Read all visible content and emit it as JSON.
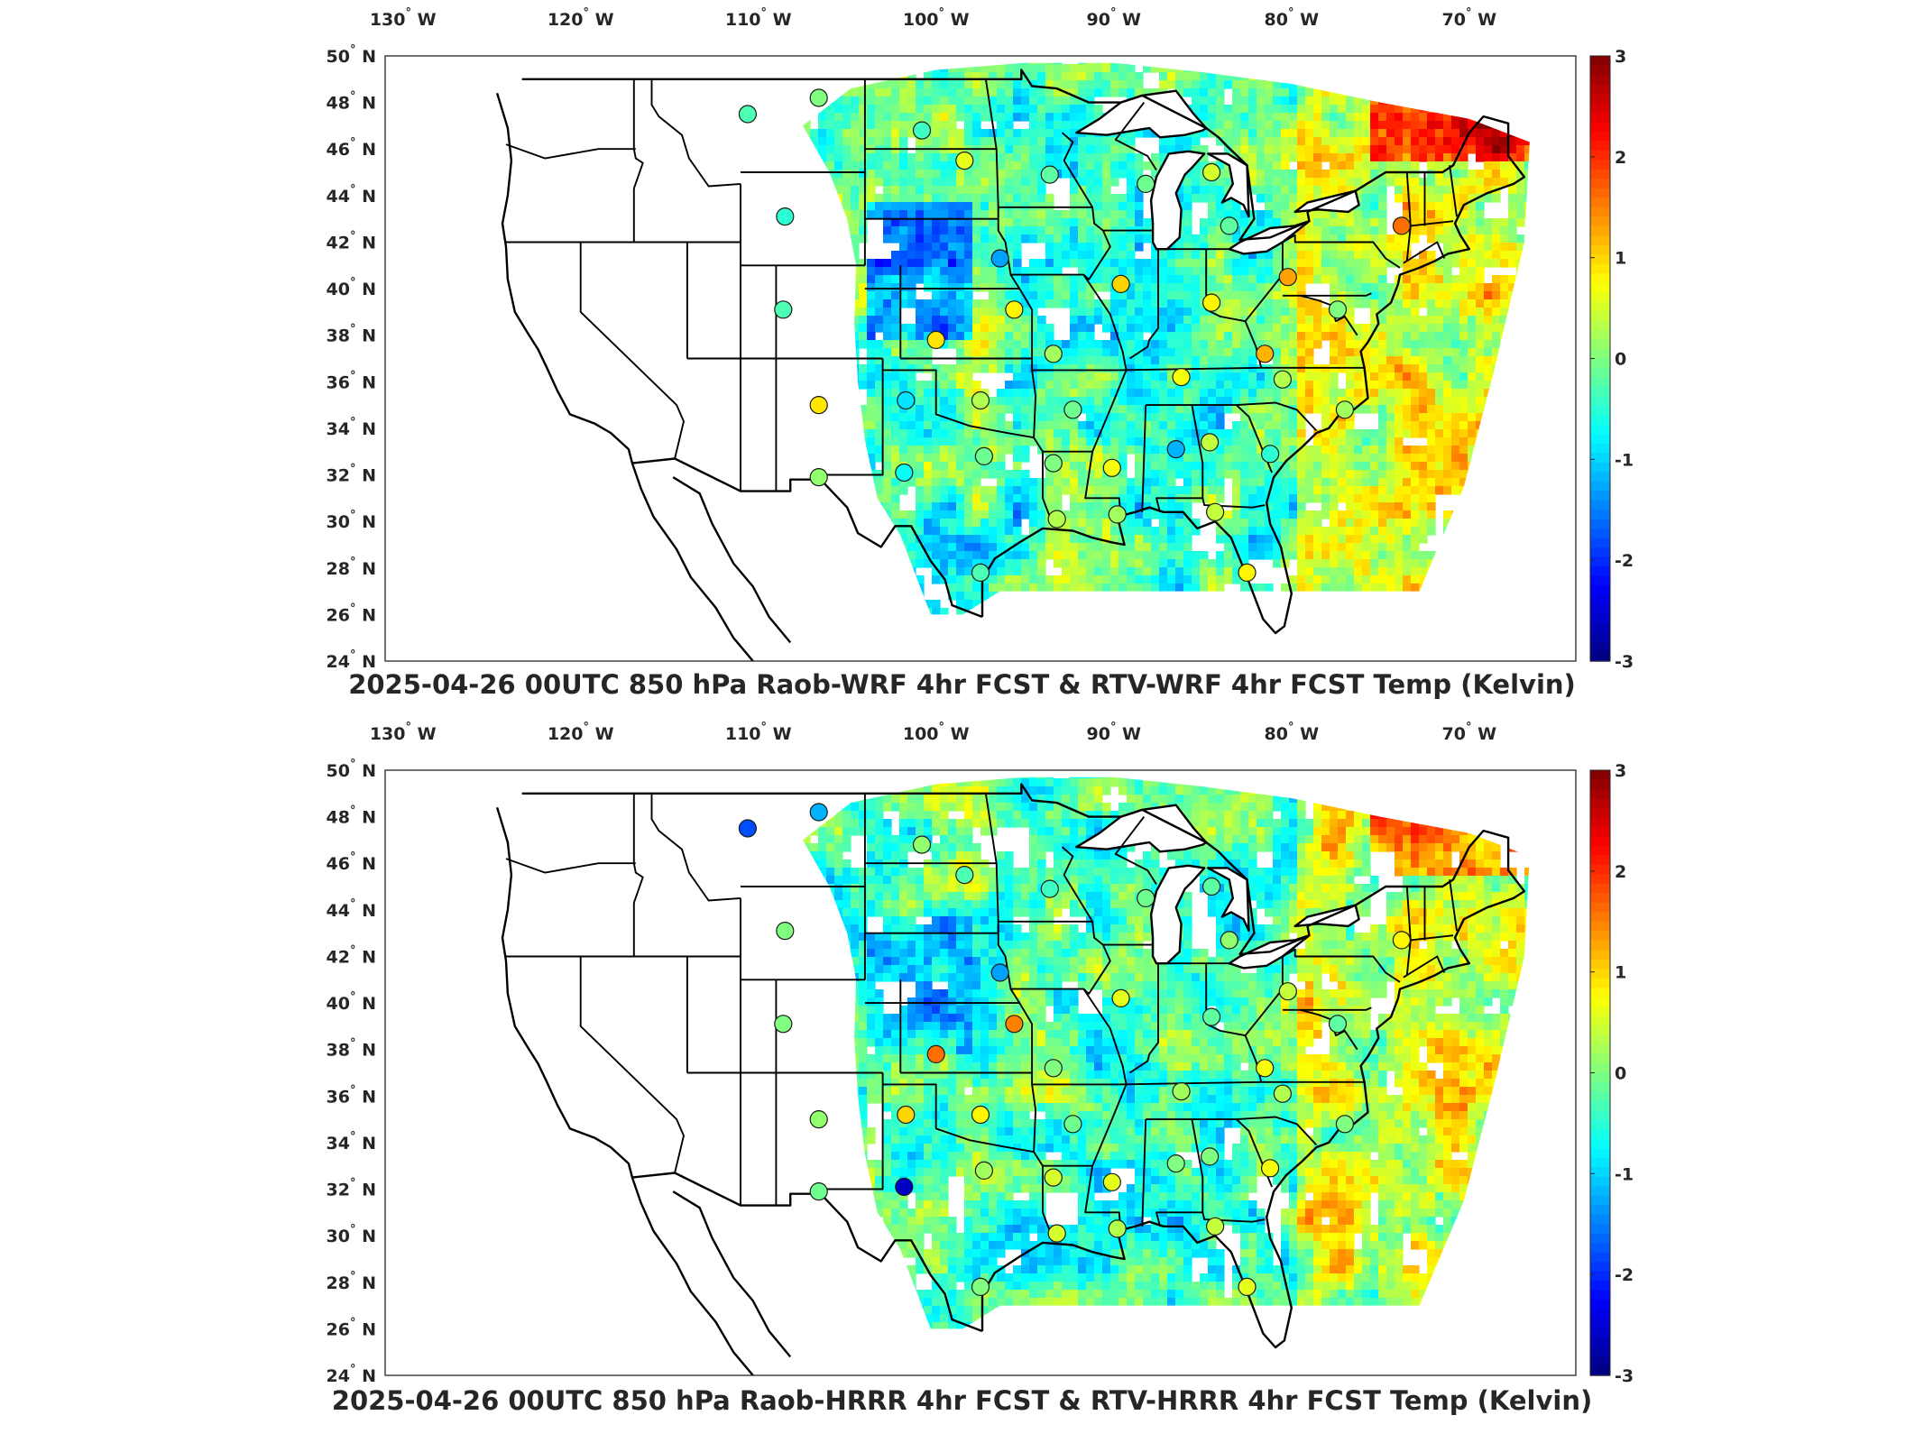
{
  "panels": [
    {
      "id": "wrf",
      "title": "2025-04-26 00UTC 850 hPa Raob-WRF 4hr FCST & RTV-WRF 4hr FCST Temp (Kelvin)",
      "colorbar": {
        "min": -3,
        "max": 3,
        "ticks": [
          "3",
          "2",
          "1",
          "0",
          "-1",
          "-2",
          "-3"
        ]
      },
      "stations": [
        {
          "lon": -110.6,
          "lat": 47.5,
          "value": -0.3
        },
        {
          "lon": -106.6,
          "lat": 48.2,
          "value": 0.0
        },
        {
          "lon": -100.8,
          "lat": 46.8,
          "value": -0.4
        },
        {
          "lon": -98.4,
          "lat": 45.5,
          "value": 0.6
        },
        {
          "lon": -93.6,
          "lat": 44.9,
          "value": -0.2
        },
        {
          "lon": -108.5,
          "lat": 43.1,
          "value": -0.5
        },
        {
          "lon": -96.4,
          "lat": 41.3,
          "value": -1.3
        },
        {
          "lon": -108.6,
          "lat": 39.1,
          "value": -0.3
        },
        {
          "lon": -95.6,
          "lat": 39.1,
          "value": 0.8
        },
        {
          "lon": -100.0,
          "lat": 37.8,
          "value": 0.9
        },
        {
          "lon": -93.4,
          "lat": 37.2,
          "value": 0.2
        },
        {
          "lon": -106.6,
          "lat": 35.0,
          "value": 0.9
        },
        {
          "lon": -101.7,
          "lat": 35.2,
          "value": -0.9
        },
        {
          "lon": -97.5,
          "lat": 35.2,
          "value": 0.3
        },
        {
          "lon": -92.3,
          "lat": 34.8,
          "value": -0.1
        },
        {
          "lon": -97.3,
          "lat": 32.8,
          "value": -0.1
        },
        {
          "lon": -101.8,
          "lat": 32.1,
          "value": -0.7
        },
        {
          "lon": -106.6,
          "lat": 31.9,
          "value": 0.1
        },
        {
          "lon": -93.4,
          "lat": 32.5,
          "value": 0.0
        },
        {
          "lon": -90.1,
          "lat": 32.3,
          "value": 0.7
        },
        {
          "lon": -86.5,
          "lat": 33.1,
          "value": -1.2
        },
        {
          "lon": -84.6,
          "lat": 33.4,
          "value": 0.4
        },
        {
          "lon": -81.2,
          "lat": 32.9,
          "value": -0.5
        },
        {
          "lon": -93.2,
          "lat": 30.1,
          "value": 0.3
        },
        {
          "lon": -89.8,
          "lat": 30.3,
          "value": 0.2
        },
        {
          "lon": -84.3,
          "lat": 30.4,
          "value": 0.4
        },
        {
          "lon": -82.5,
          "lat": 27.8,
          "value": 0.8
        },
        {
          "lon": -97.5,
          "lat": 27.8,
          "value": -0.3
        },
        {
          "lon": -89.6,
          "lat": 40.2,
          "value": 1.0
        },
        {
          "lon": -86.2,
          "lat": 36.2,
          "value": 0.7
        },
        {
          "lon": -84.5,
          "lat": 39.4,
          "value": 0.8
        },
        {
          "lon": -81.5,
          "lat": 37.2,
          "value": 1.2
        },
        {
          "lon": -80.2,
          "lat": 40.5,
          "value": 1.3
        },
        {
          "lon": -80.5,
          "lat": 36.1,
          "value": 0.3
        },
        {
          "lon": -77.0,
          "lat": 34.8,
          "value": 0.2
        },
        {
          "lon": -83.5,
          "lat": 42.7,
          "value": -0.2
        },
        {
          "lon": -88.2,
          "lat": 44.5,
          "value": -0.1
        },
        {
          "lon": -84.5,
          "lat": 45.0,
          "value": 0.5
        },
        {
          "lon": -73.8,
          "lat": 42.7,
          "value": 1.6
        },
        {
          "lon": -77.4,
          "lat": 39.1,
          "value": 0.0
        }
      ]
    },
    {
      "id": "hrrr",
      "title": "2025-04-26 00UTC 850 hPa Raob-HRRR 4hr FCST & RTV-HRRR 4hr FCST Temp (Kelvin)",
      "colorbar": {
        "min": -3,
        "max": 3,
        "ticks": [
          "3",
          "2",
          "1",
          "0",
          "-1",
          "-2",
          "-3"
        ]
      },
      "stations": [
        {
          "lon": -110.6,
          "lat": 47.5,
          "value": -1.8
        },
        {
          "lon": -106.6,
          "lat": 48.2,
          "value": -1.2
        },
        {
          "lon": -100.8,
          "lat": 46.8,
          "value": 0.1
        },
        {
          "lon": -98.4,
          "lat": 45.5,
          "value": -0.3
        },
        {
          "lon": -93.6,
          "lat": 44.9,
          "value": -0.4
        },
        {
          "lon": -108.5,
          "lat": 43.1,
          "value": 0.0
        },
        {
          "lon": -96.4,
          "lat": 41.3,
          "value": -1.3
        },
        {
          "lon": -108.6,
          "lat": 39.1,
          "value": 0.0
        },
        {
          "lon": -95.6,
          "lat": 39.1,
          "value": 1.5
        },
        {
          "lon": -100.0,
          "lat": 37.8,
          "value": 1.6
        },
        {
          "lon": -93.4,
          "lat": 37.2,
          "value": 0.0
        },
        {
          "lon": -106.6,
          "lat": 35.0,
          "value": 0.1
        },
        {
          "lon": -101.7,
          "lat": 35.2,
          "value": 1.0
        },
        {
          "lon": -97.5,
          "lat": 35.2,
          "value": 0.8
        },
        {
          "lon": -92.3,
          "lat": 34.8,
          "value": -0.1
        },
        {
          "lon": -97.3,
          "lat": 32.8,
          "value": 0.2
        },
        {
          "lon": -101.8,
          "lat": 32.1,
          "value": -2.6
        },
        {
          "lon": -106.6,
          "lat": 31.9,
          "value": -0.1
        },
        {
          "lon": -93.4,
          "lat": 32.5,
          "value": 0.5
        },
        {
          "lon": -90.1,
          "lat": 32.3,
          "value": 0.6
        },
        {
          "lon": -86.5,
          "lat": 33.1,
          "value": 0.0
        },
        {
          "lon": -84.6,
          "lat": 33.4,
          "value": 0.0
        },
        {
          "lon": -81.2,
          "lat": 32.9,
          "value": 0.7
        },
        {
          "lon": -93.2,
          "lat": 30.1,
          "value": 0.5
        },
        {
          "lon": -89.8,
          "lat": 30.3,
          "value": 0.3
        },
        {
          "lon": -84.3,
          "lat": 30.4,
          "value": 0.4
        },
        {
          "lon": -82.5,
          "lat": 27.8,
          "value": 0.6
        },
        {
          "lon": -97.5,
          "lat": 27.8,
          "value": 0.0
        },
        {
          "lon": -89.6,
          "lat": 40.2,
          "value": 0.6
        },
        {
          "lon": -86.2,
          "lat": 36.2,
          "value": 0.2
        },
        {
          "lon": -84.5,
          "lat": 39.4,
          "value": -0.2
        },
        {
          "lon": -81.5,
          "lat": 37.2,
          "value": 0.7
        },
        {
          "lon": -80.2,
          "lat": 40.5,
          "value": 0.4
        },
        {
          "lon": -80.5,
          "lat": 36.1,
          "value": 0.3
        },
        {
          "lon": -77.0,
          "lat": 34.8,
          "value": 0.0
        },
        {
          "lon": -83.5,
          "lat": 42.7,
          "value": 0.1
        },
        {
          "lon": -88.2,
          "lat": 44.5,
          "value": -0.1
        },
        {
          "lon": -84.5,
          "lat": 45.0,
          "value": -0.2
        },
        {
          "lon": -73.8,
          "lat": 42.7,
          "value": 0.8
        },
        {
          "lon": -77.4,
          "lat": 39.1,
          "value": -0.2
        }
      ]
    }
  ],
  "lon_ticks": [
    {
      "value": -130,
      "num": "130",
      "dir": "W"
    },
    {
      "value": -120,
      "num": "120",
      "dir": "W"
    },
    {
      "value": -110,
      "num": "110",
      "dir": "W"
    },
    {
      "value": -100,
      "num": "100",
      "dir": "W"
    },
    {
      "value": -90,
      "num": "90",
      "dir": "W"
    },
    {
      "value": -80,
      "num": "80",
      "dir": "W"
    },
    {
      "value": -70,
      "num": "70",
      "dir": "W"
    }
  ],
  "lat_ticks": [
    {
      "value": 50,
      "num": "50",
      "dir": "N"
    },
    {
      "value": 48,
      "num": "48",
      "dir": "N"
    },
    {
      "value": 46,
      "num": "46",
      "dir": "N"
    },
    {
      "value": 44,
      "num": "44",
      "dir": "N"
    },
    {
      "value": 42,
      "num": "42",
      "dir": "N"
    },
    {
      "value": 40,
      "num": "40",
      "dir": "N"
    },
    {
      "value": 38,
      "num": "38",
      "dir": "N"
    },
    {
      "value": 36,
      "num": "36",
      "dir": "N"
    },
    {
      "value": 34,
      "num": "34",
      "dir": "N"
    },
    {
      "value": 32,
      "num": "32",
      "dir": "N"
    },
    {
      "value": 30,
      "num": "30",
      "dir": "N"
    },
    {
      "value": 28,
      "num": "28",
      "dir": "N"
    },
    {
      "value": 26,
      "num": "26",
      "dir": "N"
    },
    {
      "value": 24,
      "num": "24",
      "dir": "N"
    }
  ],
  "degree_symbol": "°",
  "colormap": "jet",
  "map_extent": {
    "lon_min": -131,
    "lon_max": -64,
    "lat_min": 24,
    "lat_max": 50
  }
}
